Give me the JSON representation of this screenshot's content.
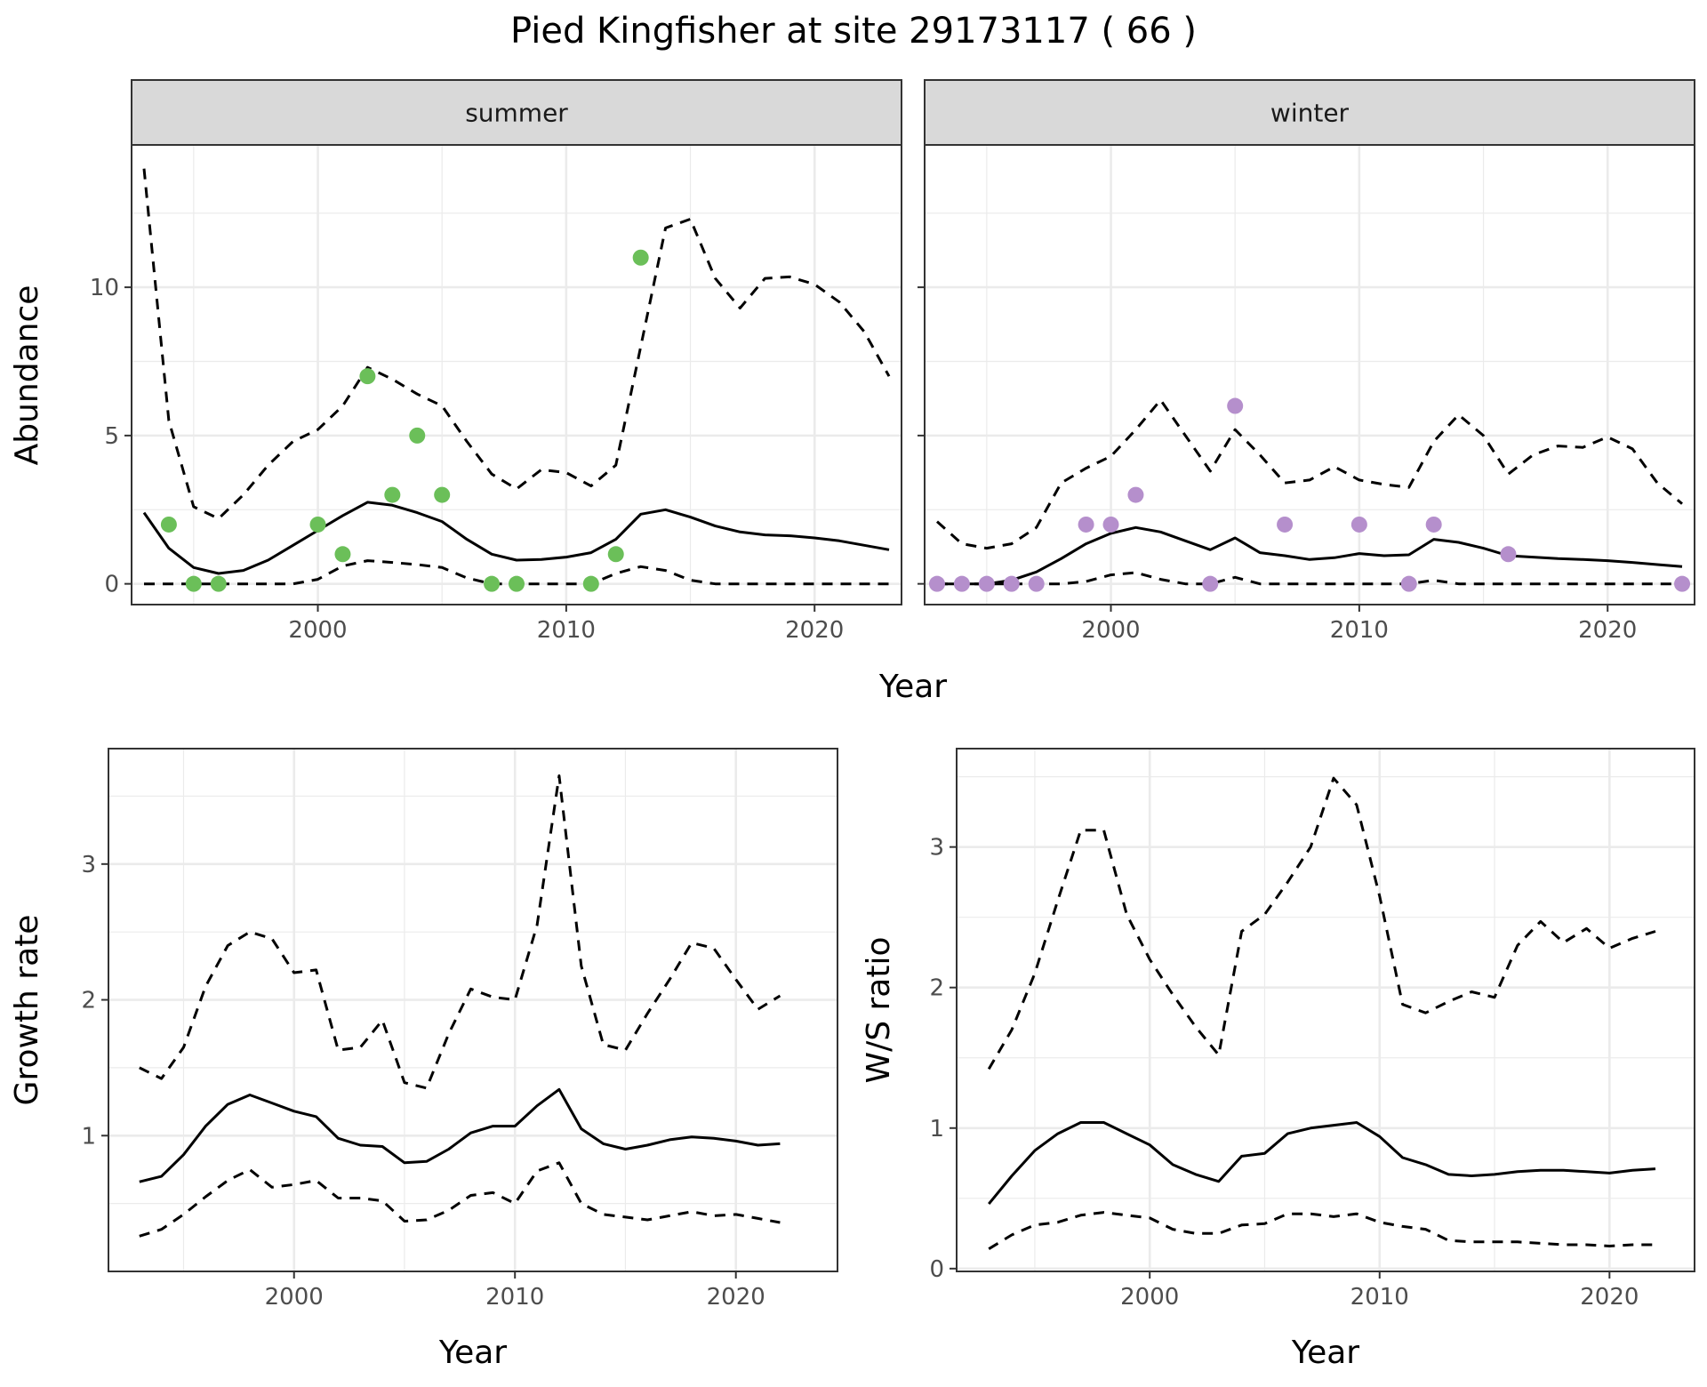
{
  "title": "Pied Kingfisher at site 29173117 ( 66 )",
  "colors": {
    "summer_points": "#6bbf59",
    "winter_points": "#b58fcc",
    "line": "#000000",
    "grid_major": "#ebebeb",
    "strip_bg": "#d9d9d9"
  },
  "chart_data": [
    {
      "type": "line",
      "facet_label": "summer",
      "xlabel": "Year",
      "ylabel": "Abundance",
      "xlim": [
        1992.5,
        2023.5
      ],
      "ylim": [
        -0.7,
        14.8
      ],
      "x_ticks": [
        2000,
        2010,
        2020
      ],
      "y_ticks": [
        0,
        5,
        10
      ],
      "grid": true,
      "observed_points": {
        "x": [
          1994,
          1995,
          1996,
          2000,
          2001,
          2002,
          2003,
          2004,
          2005,
          2007,
          2008,
          2011,
          2012,
          2013
        ],
        "y": [
          2,
          0,
          0,
          2,
          1,
          7,
          3,
          5,
          3,
          0,
          0,
          0,
          1,
          11
        ]
      },
      "series": [
        {
          "style": "solid",
          "x": [
            1993,
            1994,
            1995,
            1996,
            1997,
            1998,
            1999,
            2000,
            2001,
            2002,
            2003,
            2004,
            2005,
            2006,
            2007,
            2008,
            2009,
            2010,
            2011,
            2012,
            2013,
            2014,
            2015,
            2016,
            2017,
            2018,
            2019,
            2020,
            2021,
            2022,
            2023
          ],
          "y": [
            2.4,
            1.2,
            0.55,
            0.35,
            0.45,
            0.8,
            1.3,
            1.8,
            2.3,
            2.75,
            2.65,
            2.4,
            2.1,
            1.5,
            1.0,
            0.8,
            0.82,
            0.9,
            1.05,
            1.5,
            2.35,
            2.5,
            2.25,
            1.95,
            1.75,
            1.65,
            1.62,
            1.55,
            1.45,
            1.3,
            1.15
          ]
        },
        {
          "style": "dashed",
          "x": [
            1993,
            1994,
            1995,
            1996,
            1997,
            1998,
            1999,
            2000,
            2001,
            2002,
            2003,
            2004,
            2005,
            2006,
            2007,
            2008,
            2009,
            2010,
            2011,
            2012,
            2013,
            2014,
            2015,
            2016,
            2017,
            2018,
            2019,
            2020,
            2021,
            2022,
            2023
          ],
          "y": [
            14,
            5.5,
            2.6,
            2.2,
            3.0,
            4.0,
            4.8,
            5.2,
            6.0,
            7.3,
            6.9,
            6.4,
            6.0,
            4.8,
            3.7,
            3.2,
            3.85,
            3.75,
            3.3,
            4.0,
            8.0,
            12.0,
            12.3,
            10.3,
            9.3,
            10.3,
            10.35,
            10.1,
            9.5,
            8.5,
            7.0
          ]
        },
        {
          "style": "dashed",
          "x": [
            1993,
            1994,
            1995,
            1996,
            1997,
            1998,
            1999,
            2000,
            2001,
            2002,
            2003,
            2004,
            2005,
            2006,
            2007,
            2008,
            2009,
            2010,
            2011,
            2012,
            2013,
            2014,
            2015,
            2016,
            2017,
            2018,
            2019,
            2020,
            2021,
            2022,
            2023
          ],
          "y": [
            0,
            0,
            0,
            0,
            0,
            0,
            0,
            0.15,
            0.6,
            0.78,
            0.72,
            0.65,
            0.55,
            0.2,
            0,
            0,
            0,
            0,
            0,
            0.35,
            0.58,
            0.45,
            0.12,
            0,
            0,
            0,
            0,
            0,
            0,
            0,
            0
          ]
        }
      ]
    },
    {
      "type": "line",
      "facet_label": "winter",
      "xlabel": "Year",
      "ylabel": "Abundance",
      "xlim": [
        1992.5,
        2023.5
      ],
      "ylim": [
        -0.7,
        14.8
      ],
      "x_ticks": [
        2000,
        2010,
        2020
      ],
      "y_ticks": [
        0,
        5,
        10
      ],
      "grid": true,
      "observed_points": {
        "x": [
          1993,
          1994,
          1995,
          1996,
          1997,
          1999,
          2000,
          2001,
          2004,
          2005,
          2007,
          2010,
          2012,
          2013,
          2016,
          2023
        ],
        "y": [
          0,
          0,
          0,
          0,
          0,
          2,
          2,
          3,
          0,
          6,
          2,
          2,
          0,
          2,
          1,
          0
        ]
      },
      "series": [
        {
          "style": "solid",
          "x": [
            1993,
            1994,
            1995,
            1996,
            1997,
            1998,
            1999,
            2000,
            2001,
            2002,
            2003,
            2004,
            2005,
            2006,
            2007,
            2008,
            2009,
            2010,
            2011,
            2012,
            2013,
            2014,
            2015,
            2016,
            2017,
            2018,
            2019,
            2020,
            2021,
            2022,
            2023
          ],
          "y": [
            0,
            0,
            0,
            0.12,
            0.4,
            0.85,
            1.35,
            1.7,
            1.9,
            1.75,
            1.45,
            1.15,
            1.55,
            1.05,
            0.95,
            0.82,
            0.88,
            1.02,
            0.95,
            0.98,
            1.5,
            1.4,
            1.2,
            0.95,
            0.9,
            0.85,
            0.82,
            0.78,
            0.72,
            0.65,
            0.58
          ]
        },
        {
          "style": "dashed",
          "x": [
            1993,
            1994,
            1995,
            1996,
            1997,
            1998,
            1999,
            2000,
            2001,
            2002,
            2003,
            2004,
            2005,
            2006,
            2007,
            2008,
            2009,
            2010,
            2011,
            2012,
            2013,
            2014,
            2015,
            2016,
            2017,
            2018,
            2019,
            2020,
            2021,
            2022,
            2023
          ],
          "y": [
            2.1,
            1.35,
            1.2,
            1.35,
            1.9,
            3.4,
            3.9,
            4.3,
            5.2,
            6.2,
            5.0,
            3.8,
            5.2,
            4.35,
            3.4,
            3.5,
            3.95,
            3.5,
            3.35,
            3.25,
            4.8,
            5.7,
            5.0,
            3.7,
            4.35,
            4.65,
            4.6,
            4.95,
            4.55,
            3.4,
            2.7
          ]
        },
        {
          "style": "dashed",
          "x": [
            1993,
            1994,
            1995,
            1996,
            1997,
            1998,
            1999,
            2000,
            2001,
            2002,
            2003,
            2004,
            2005,
            2006,
            2007,
            2008,
            2009,
            2010,
            2011,
            2012,
            2013,
            2014,
            2015,
            2016,
            2017,
            2018,
            2019,
            2020,
            2021,
            2022,
            2023
          ],
          "y": [
            0,
            0,
            0,
            0,
            0,
            0,
            0.08,
            0.3,
            0.38,
            0.15,
            0,
            0,
            0.22,
            0,
            0,
            0,
            0,
            0,
            0,
            0,
            0.12,
            0,
            0,
            0,
            0,
            0,
            0,
            0,
            0,
            0,
            0
          ]
        }
      ]
    },
    {
      "type": "line",
      "xlabel": "Year",
      "ylabel": "Growth rate",
      "xlim": [
        1991.6,
        2024.6
      ],
      "ylim": [
        0.0,
        3.85
      ],
      "x_ticks": [
        2000,
        2010,
        2020
      ],
      "y_ticks": [
        1,
        2,
        3
      ],
      "grid": true,
      "series": [
        {
          "style": "solid",
          "x": [
            1993,
            1994,
            1995,
            1996,
            1997,
            1998,
            1999,
            2000,
            2001,
            2002,
            2003,
            2004,
            2005,
            2006,
            2007,
            2008,
            2009,
            2010,
            2011,
            2012,
            2013,
            2014,
            2015,
            2016,
            2017,
            2018,
            2019,
            2020,
            2021,
            2022
          ],
          "y": [
            0.66,
            0.7,
            0.86,
            1.07,
            1.23,
            1.3,
            1.24,
            1.18,
            1.14,
            0.98,
            0.93,
            0.92,
            0.8,
            0.81,
            0.9,
            1.02,
            1.07,
            1.07,
            1.22,
            1.34,
            1.05,
            0.94,
            0.9,
            0.93,
            0.97,
            0.99,
            0.98,
            0.96,
            0.93,
            0.94
          ]
        },
        {
          "style": "dashed",
          "x": [
            1993,
            1994,
            1995,
            1996,
            1997,
            1998,
            1999,
            2000,
            2001,
            2002,
            2003,
            2004,
            2005,
            2006,
            2007,
            2008,
            2009,
            2010,
            2011,
            2012,
            2013,
            2014,
            2015,
            2016,
            2017,
            2018,
            2019,
            2020,
            2021,
            2022
          ],
          "y": [
            1.5,
            1.42,
            1.65,
            2.1,
            2.4,
            2.5,
            2.45,
            2.2,
            2.22,
            1.63,
            1.65,
            1.85,
            1.39,
            1.35,
            1.75,
            2.08,
            2.02,
            2.0,
            2.55,
            3.65,
            2.25,
            1.67,
            1.63,
            1.9,
            2.15,
            2.42,
            2.38,
            2.15,
            1.93,
            2.03
          ]
        },
        {
          "style": "dashed",
          "x": [
            1993,
            1994,
            1995,
            1996,
            1997,
            1998,
            1999,
            2000,
            2001,
            2002,
            2003,
            2004,
            2005,
            2006,
            2007,
            2008,
            2009,
            2010,
            2011,
            2012,
            2013,
            2014,
            2015,
            2016,
            2017,
            2018,
            2019,
            2020,
            2021,
            2022
          ],
          "y": [
            0.26,
            0.31,
            0.42,
            0.55,
            0.67,
            0.75,
            0.62,
            0.64,
            0.67,
            0.54,
            0.54,
            0.52,
            0.37,
            0.38,
            0.45,
            0.56,
            0.58,
            0.5,
            0.74,
            0.8,
            0.5,
            0.42,
            0.4,
            0.38,
            0.41,
            0.44,
            0.41,
            0.42,
            0.39,
            0.36
          ]
        }
      ]
    },
    {
      "type": "line",
      "xlabel": "Year",
      "ylabel": "W/S ratio",
      "xlim": [
        1991.6,
        2023.7
      ],
      "ylim": [
        -0.02,
        3.7
      ],
      "x_ticks": [
        2000,
        2010,
        2020
      ],
      "y_ticks": [
        0,
        1,
        2,
        3
      ],
      "grid": true,
      "series": [
        {
          "style": "solid",
          "x": [
            1993,
            1994,
            1995,
            1996,
            1997,
            1998,
            1999,
            2000,
            2001,
            2002,
            2003,
            2004,
            2005,
            2006,
            2007,
            2008,
            2009,
            2010,
            2011,
            2012,
            2013,
            2014,
            2015,
            2016,
            2017,
            2018,
            2019,
            2020,
            2021,
            2022
          ],
          "y": [
            0.46,
            0.66,
            0.84,
            0.96,
            1.04,
            1.04,
            0.96,
            0.88,
            0.74,
            0.67,
            0.62,
            0.8,
            0.82,
            0.96,
            1.0,
            1.02,
            1.04,
            0.94,
            0.79,
            0.74,
            0.67,
            0.66,
            0.67,
            0.69,
            0.7,
            0.7,
            0.69,
            0.68,
            0.7,
            0.71
          ]
        },
        {
          "style": "dashed",
          "x": [
            1993,
            1994,
            1995,
            1996,
            1997,
            1998,
            1999,
            2000,
            2001,
            2002,
            2003,
            2004,
            2005,
            2006,
            2007,
            2008,
            2009,
            2010,
            2011,
            2012,
            2013,
            2014,
            2015,
            2016,
            2017,
            2018,
            2019,
            2020,
            2021,
            2022
          ],
          "y": [
            1.42,
            1.7,
            2.1,
            2.62,
            3.12,
            3.12,
            2.52,
            2.2,
            1.95,
            1.72,
            1.52,
            2.4,
            2.52,
            2.75,
            3.0,
            3.49,
            3.3,
            2.65,
            1.88,
            1.82,
            1.9,
            1.97,
            1.93,
            2.3,
            2.47,
            2.32,
            2.42,
            2.28,
            2.35,
            2.4
          ]
        },
        {
          "style": "dashed",
          "x": [
            1993,
            1994,
            1995,
            1996,
            1997,
            1998,
            1999,
            2000,
            2001,
            2002,
            2003,
            2004,
            2005,
            2006,
            2007,
            2008,
            2009,
            2010,
            2011,
            2012,
            2013,
            2014,
            2015,
            2016,
            2017,
            2018,
            2019,
            2020,
            2021,
            2022
          ],
          "y": [
            0.14,
            0.24,
            0.31,
            0.33,
            0.38,
            0.4,
            0.38,
            0.36,
            0.28,
            0.25,
            0.25,
            0.31,
            0.32,
            0.39,
            0.39,
            0.37,
            0.39,
            0.33,
            0.3,
            0.28,
            0.2,
            0.19,
            0.19,
            0.19,
            0.18,
            0.17,
            0.17,
            0.16,
            0.17,
            0.17
          ]
        }
      ]
    }
  ]
}
